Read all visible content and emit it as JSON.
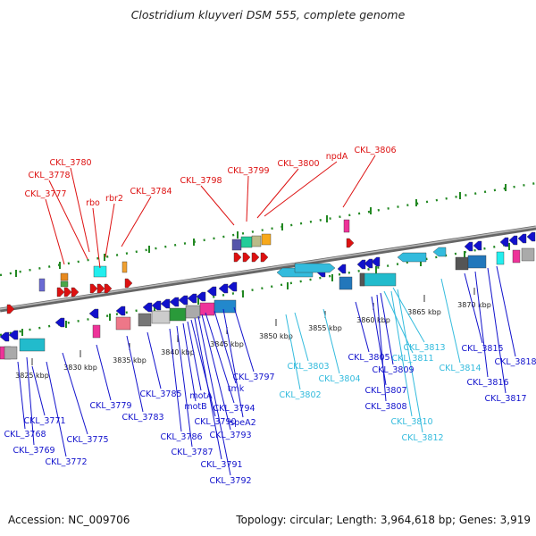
{
  "title": "Clostridium kluyveri DSM 555, complete genome",
  "footer": {
    "accession": "Accession: NC_009706",
    "summary": "Topology: circular; Length: 3,964,618 bp; Genes: 3,919"
  },
  "scale_ticks": [
    "3825 kbp",
    "3830 kbp",
    "3835 kbp",
    "3840 kbp",
    "3845 kbp",
    "3850 kbp",
    "3855 kbp",
    "3860 kbp",
    "3865 kbp",
    "3870 kbp"
  ],
  "colors": {
    "forward_track": "#dd1111",
    "reverse_track": "#1111cc",
    "light_track": "#33bbdd",
    "axis": "#888888",
    "tick": "#228822"
  },
  "labels_top": [
    "CKL_3780",
    "CKL_3778",
    "CKL_3777",
    "rbo",
    "rbr2",
    "CKL_3784",
    "CKL_3798",
    "CKL_3799",
    "CKL_3800",
    "npdA",
    "CKL_3806"
  ],
  "labels_bottom": [
    "CKL_3771",
    "CKL_3768",
    "CKL_3769",
    "CKL_3772",
    "CKL_3775",
    "CKL_3779",
    "CKL_3783",
    "CKL_3785",
    "CKL_3786",
    "CKL_3787",
    "motB",
    "motA",
    "CKL_3790",
    "CKL_3791",
    "CKL_3792",
    "CKL_3793",
    "CKL_3794",
    "tmk",
    "speA2",
    "CKL_3797",
    "CKL_3802",
    "CKL_3803",
    "CKL_3804",
    "CKL_3805",
    "CKL_3807",
    "CKL_3808",
    "CKL_3809",
    "CKL_3810",
    "CKL_3811",
    "CKL_3812",
    "CKL_3813",
    "CKL_3814",
    "CKL_3815",
    "CKL_3816",
    "CKL_3817",
    "CKL_3818"
  ]
}
